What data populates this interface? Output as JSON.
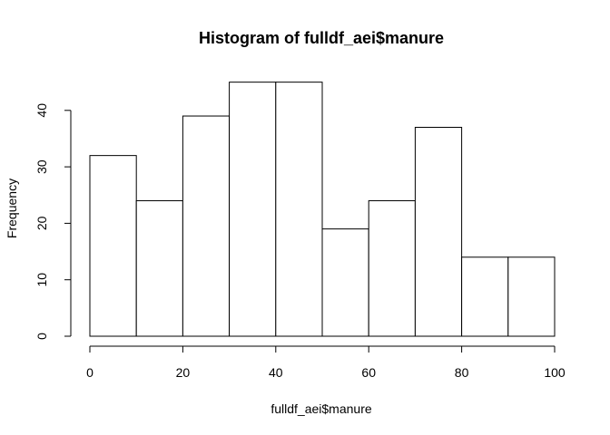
{
  "chart_data": {
    "type": "bar",
    "title": "Histogram of fulldf_aei$manure",
    "xlabel": "fulldf_aei$manure",
    "ylabel": "Frequency",
    "bins": [
      {
        "x0": 0,
        "x1": 10,
        "count": 32
      },
      {
        "x0": 10,
        "x1": 20,
        "count": 24
      },
      {
        "x0": 20,
        "x1": 30,
        "count": 39
      },
      {
        "x0": 30,
        "x1": 40,
        "count": 45
      },
      {
        "x0": 40,
        "x1": 50,
        "count": 45
      },
      {
        "x0": 50,
        "x1": 60,
        "count": 19
      },
      {
        "x0": 60,
        "x1": 70,
        "count": 24
      },
      {
        "x0": 70,
        "x1": 80,
        "count": 37
      },
      {
        "x0": 80,
        "x1": 90,
        "count": 14
      },
      {
        "x0": 90,
        "x1": 100,
        "count": 14
      }
    ],
    "xlim": [
      0,
      100
    ],
    "ylim": [
      0,
      45
    ],
    "x_ticks": [
      0,
      20,
      40,
      60,
      80,
      100
    ],
    "y_ticks": [
      0,
      10,
      20,
      30,
      40
    ],
    "bar_fill": "#ffffff",
    "bar_stroke": "#000000",
    "grid": false,
    "legend": false
  }
}
